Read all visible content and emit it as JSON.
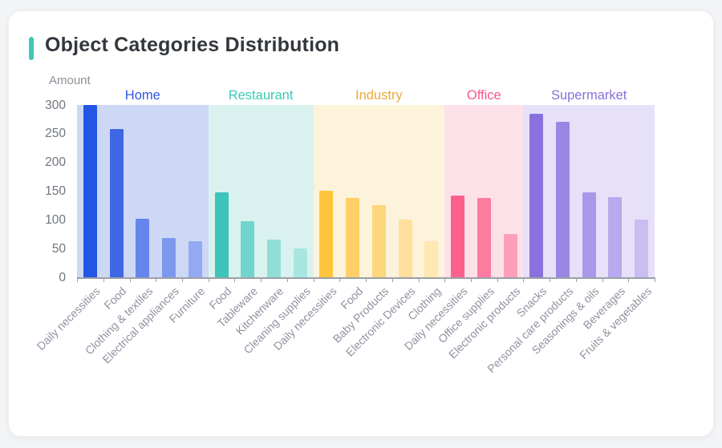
{
  "card": {
    "accent_color": "#3fc6b7"
  },
  "chart_data": {
    "type": "bar",
    "title": "Object Categories Distribution",
    "ylabel": "Amount",
    "xlabel": "",
    "ylim": [
      0,
      300
    ],
    "yticks": [
      0,
      50,
      100,
      150,
      200,
      250,
      300
    ],
    "grid": false,
    "legend_position": "none",
    "group_labels_position": "top",
    "x_labels_rotation": 45,
    "theme": {
      "axis_color": "#9ba0a8",
      "tick_label_color": "#70757e",
      "x_label_color": "#8e93a0",
      "title_color": "#33373d",
      "card_background": "#ffffff",
      "page_background": "#f2f4f6"
    },
    "groups": [
      {
        "name": "Home",
        "label_color": "#2f55e1",
        "band_color": "#cdd8f5",
        "bars": [
          {
            "label": "Daily necessities",
            "value": 300,
            "color": "#2256e3"
          },
          {
            "label": "Food",
            "value": 258,
            "color": "#3f68e6"
          },
          {
            "label": "Clothing & textiles",
            "value": 102,
            "color": "#6584ec"
          },
          {
            "label": "Electrical appliances",
            "value": 68,
            "color": "#7d97ef"
          },
          {
            "label": "Furniture",
            "value": 63,
            "color": "#93a9f2"
          }
        ]
      },
      {
        "name": "Restaurant",
        "label_color": "#3ec9b6",
        "band_color": "#d9f2ef",
        "bars": [
          {
            "label": "Food",
            "value": 148,
            "color": "#3ec4b8"
          },
          {
            "label": "Tableware",
            "value": 97,
            "color": "#72d5cb"
          },
          {
            "label": "Kitchenware",
            "value": 65,
            "color": "#90ded6"
          },
          {
            "label": "Cleaning supplies",
            "value": 50,
            "color": "#a8e6e0"
          }
        ]
      },
      {
        "name": "Industry",
        "label_color": "#e9a93c",
        "band_color": "#fdf2da",
        "bars": [
          {
            "label": "Daily necessities",
            "value": 150,
            "color": "#ffc53f"
          },
          {
            "label": "Food",
            "value": 138,
            "color": "#ffd069"
          },
          {
            "label": "Baby Products",
            "value": 126,
            "color": "#fed67c"
          },
          {
            "label": "Electronic Devices",
            "value": 100,
            "color": "#ffe09e"
          },
          {
            "label": "Clothing",
            "value": 63,
            "color": "#ffe7b2"
          }
        ]
      },
      {
        "name": "Office",
        "label_color": "#f4588a",
        "band_color": "#fde1e9",
        "bars": [
          {
            "label": "Daily necessities",
            "value": 142,
            "color": "#fb618c"
          },
          {
            "label": "Office supplies",
            "value": 138,
            "color": "#fc7ca0"
          },
          {
            "label": "Electronic products",
            "value": 75,
            "color": "#fd9fb9"
          }
        ]
      },
      {
        "name": "Supermarket",
        "label_color": "#8a70da",
        "band_color": "#e6e1f8",
        "bars": [
          {
            "label": "Snacks",
            "value": 285,
            "color": "#8a70dd"
          },
          {
            "label": "Personal care products",
            "value": 271,
            "color": "#9c86e4"
          },
          {
            "label": "Seasonings & oils",
            "value": 148,
            "color": "#ab97e9"
          },
          {
            "label": "Beverages",
            "value": 140,
            "color": "#b8a8ee"
          },
          {
            "label": "Fruits & vegetables",
            "value": 101,
            "color": "#cabdf2"
          }
        ]
      }
    ]
  }
}
